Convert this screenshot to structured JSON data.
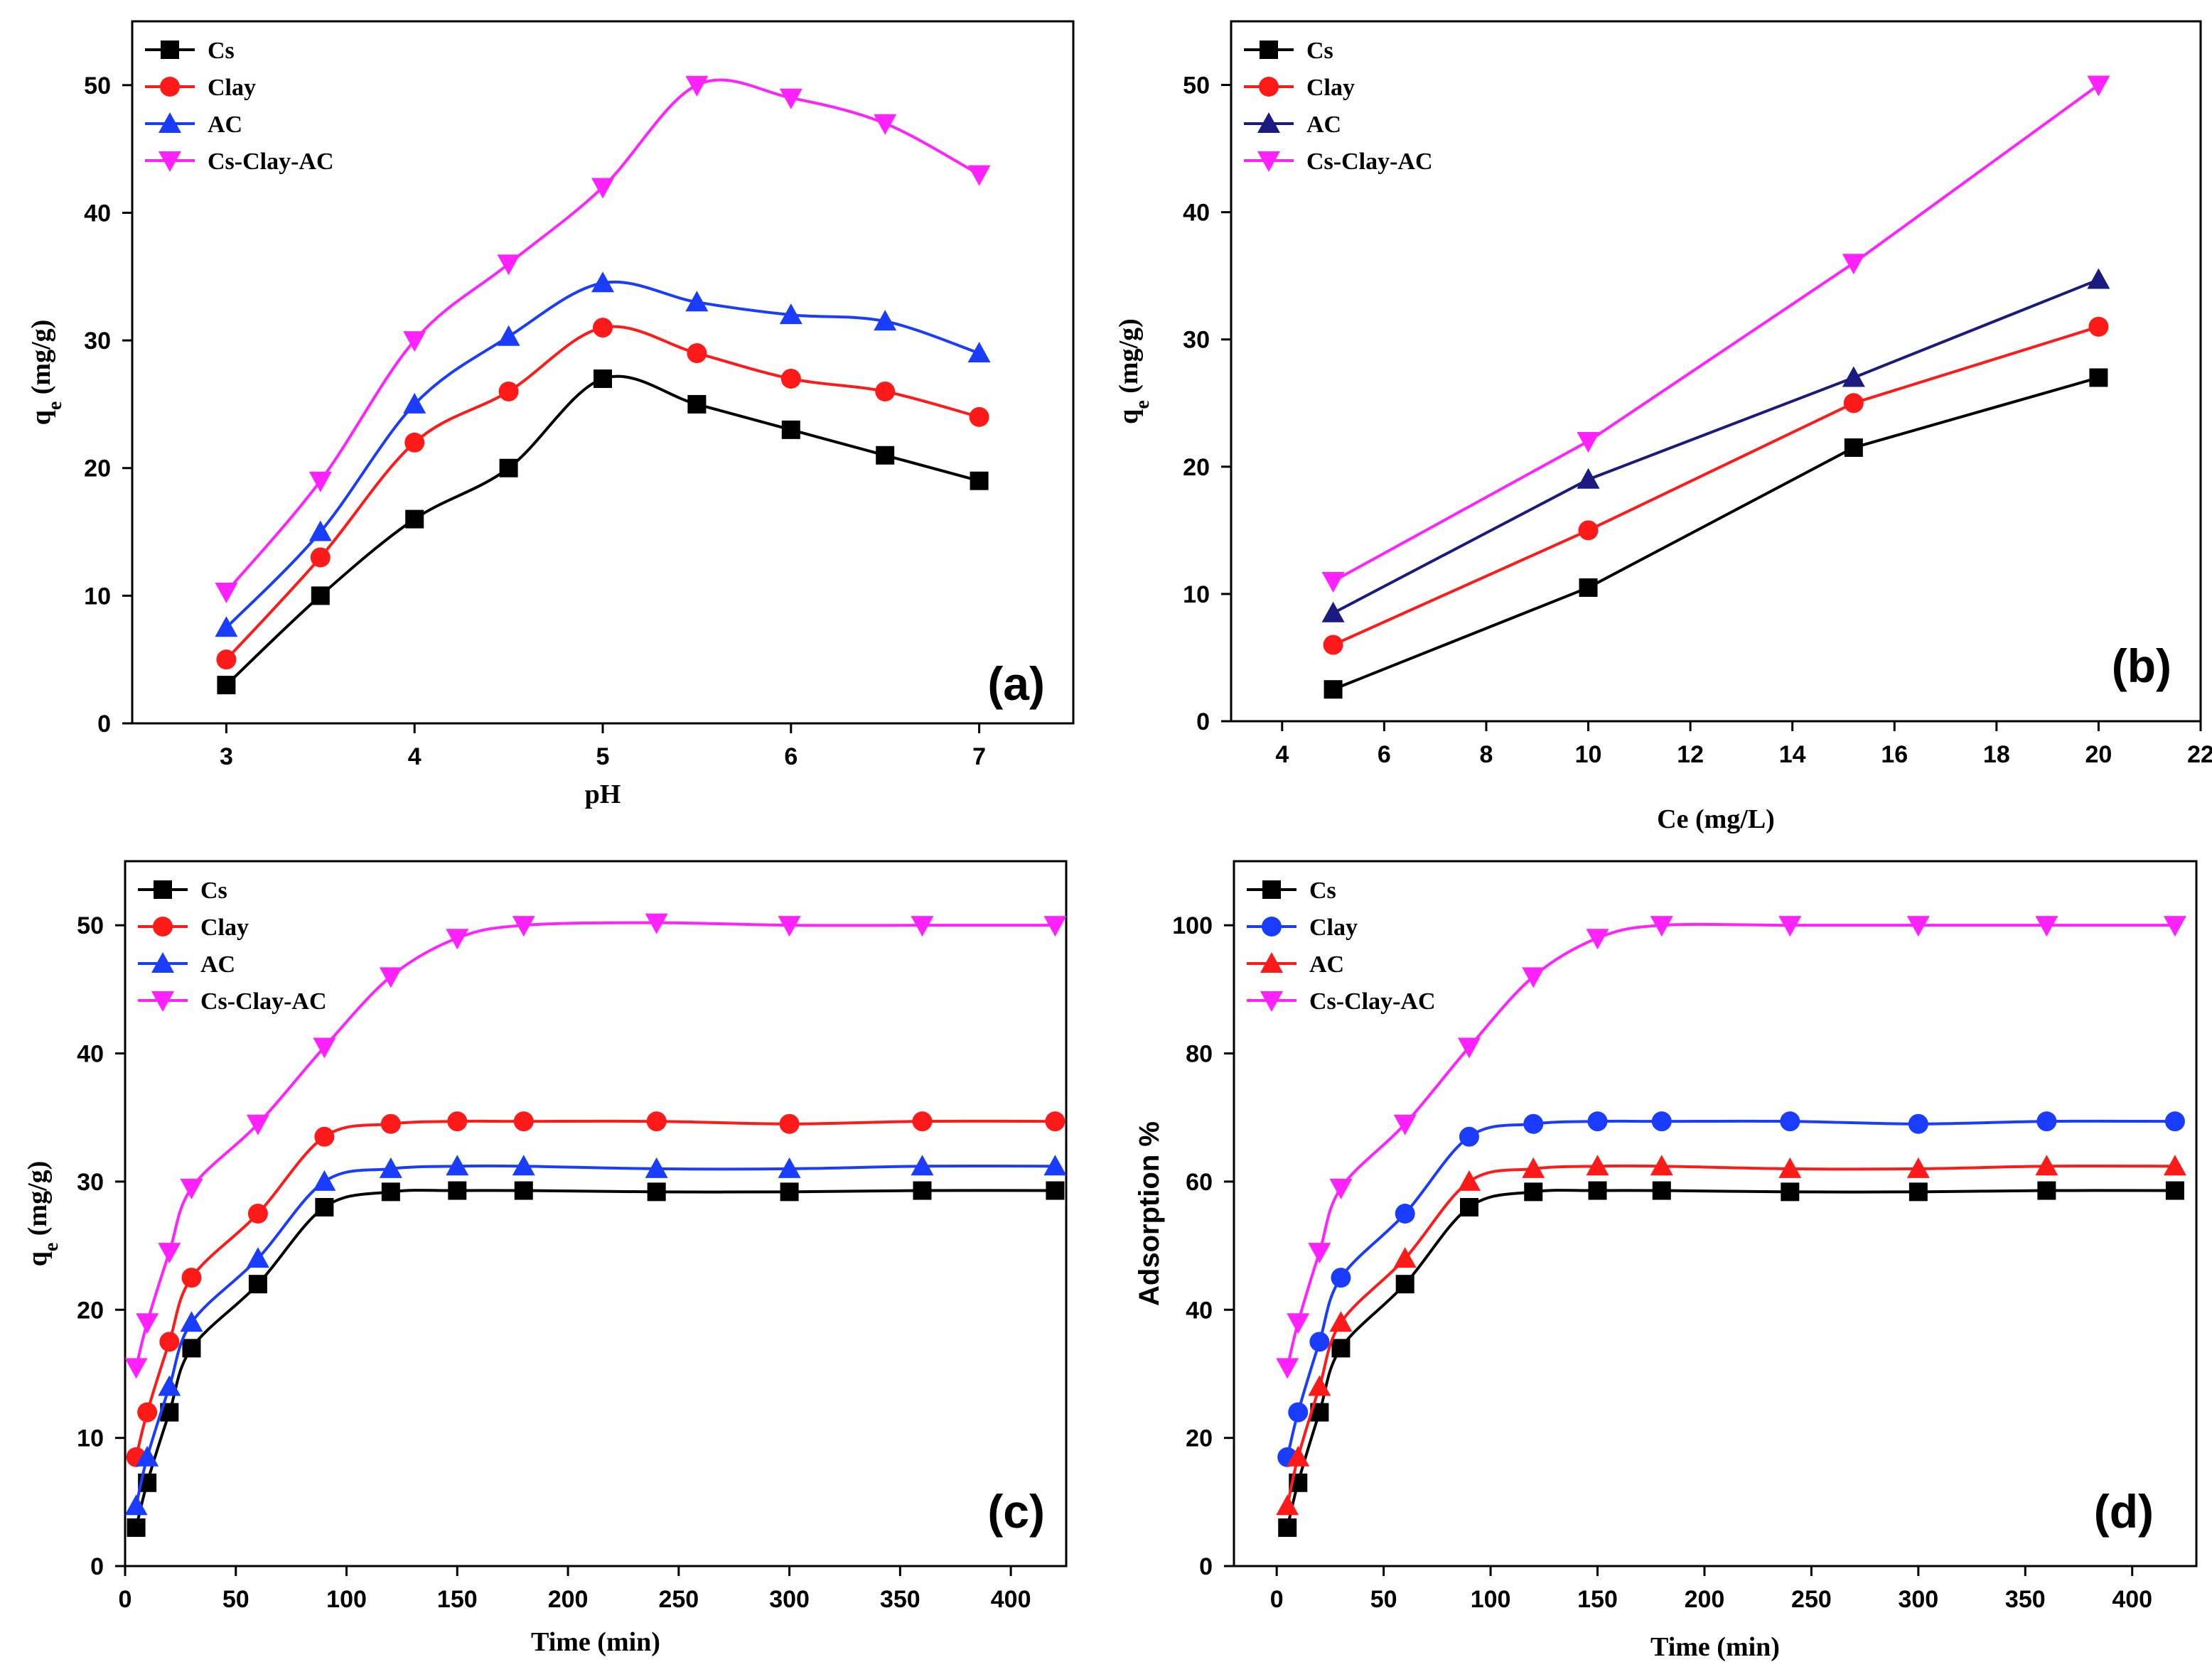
{
  "figure_title": "",
  "colors": {
    "black": "#000000",
    "red": "#ff1a1a",
    "blue": "#1a3cff",
    "navy": "#1a1a80",
    "magenta": "#ff22ff"
  },
  "chart_data": [
    {
      "type": "line",
      "panel_label": "(a)",
      "xlabel": "pH",
      "ylabel": "qe (mg/g)",
      "ylabel_main": "q",
      "ylabel_sub": "e",
      "ylabel_rest": " (mg/g)",
      "xlim": [
        2.5,
        7.5
      ],
      "ylim": [
        0,
        55
      ],
      "xticks": [
        3,
        4,
        5,
        6,
        7
      ],
      "xticklabels": [
        "3",
        "4",
        "5",
        "6",
        "7"
      ],
      "yticks": [
        0,
        10,
        20,
        30,
        40,
        50
      ],
      "yticklabels": [
        "0",
        "10",
        "20",
        "30",
        "40",
        "50"
      ],
      "legend_position": "top-left",
      "series": [
        {
          "name": "Cs",
          "color": "#000000",
          "marker": "square",
          "x": [
            3,
            3.5,
            4,
            4.5,
            5,
            5.5,
            6,
            6.5,
            7
          ],
          "values": [
            3,
            10,
            16,
            20,
            27,
            25,
            23,
            21,
            19
          ]
        },
        {
          "name": "Clay",
          "color": "#ff1a1a",
          "marker": "circle",
          "x": [
            3,
            3.5,
            4,
            4.5,
            5,
            5.5,
            6,
            6.5,
            7
          ],
          "values": [
            5,
            13,
            22,
            26,
            31,
            29,
            27,
            26,
            24
          ]
        },
        {
          "name": "AC",
          "color": "#1a3cff",
          "marker": "triangle-up",
          "x": [
            3,
            3.5,
            4,
            4.5,
            5,
            5.5,
            6,
            6.5,
            7
          ],
          "values": [
            7.5,
            15,
            25,
            30.3,
            34.5,
            33,
            32,
            31.5,
            29
          ]
        },
        {
          "name": "Cs-Clay-AC",
          "color": "#ff22ff",
          "marker": "triangle-down",
          "x": [
            3,
            3.5,
            4,
            4.5,
            5,
            5.5,
            6,
            6.5,
            7
          ],
          "values": [
            10.3,
            19,
            30,
            36,
            42,
            50,
            49,
            47,
            43
          ]
        }
      ]
    },
    {
      "type": "line",
      "panel_label": "(b)",
      "xlabel": "Ce (mg/L)",
      "ylabel": "qe (mg/g)",
      "ylabel_main": "q",
      "ylabel_sub": "e",
      "ylabel_rest": " (mg/g)",
      "xlim": [
        3,
        22
      ],
      "ylim": [
        0,
        55
      ],
      "xticks": [
        4,
        6,
        8,
        10,
        12,
        14,
        16,
        18,
        20,
        22
      ],
      "xticklabels": [
        "4",
        "6",
        "8",
        "10",
        "12",
        "14",
        "16",
        "18",
        "20",
        "22"
      ],
      "yticks": [
        0,
        10,
        20,
        30,
        40,
        50
      ],
      "yticklabels": [
        "0",
        "10",
        "20",
        "30",
        "40",
        "50"
      ],
      "legend_position": "top-left",
      "series": [
        {
          "name": "Cs",
          "color": "#000000",
          "marker": "square",
          "x": [
            5,
            10,
            15.2,
            20
          ],
          "values": [
            2.5,
            10.5,
            21.5,
            27
          ]
        },
        {
          "name": "Clay",
          "color": "#ff1a1a",
          "marker": "circle",
          "x": [
            5,
            10,
            15.2,
            20
          ],
          "values": [
            6,
            15,
            25,
            31
          ]
        },
        {
          "name": "AC",
          "color": "#1a1a80",
          "marker": "triangle-up",
          "x": [
            5,
            10,
            15.2,
            20
          ],
          "values": [
            8.5,
            19,
            27,
            34.7
          ]
        },
        {
          "name": "Cs-Clay-AC",
          "color": "#ff22ff",
          "marker": "triangle-down",
          "x": [
            5,
            10,
            15.2,
            20
          ],
          "values": [
            11,
            22,
            36,
            50
          ]
        }
      ]
    },
    {
      "type": "line",
      "panel_label": "(c)",
      "xlabel": "Time (min)",
      "ylabel": "qe (mg/g)",
      "ylabel_main": "q",
      "ylabel_sub": "e",
      "ylabel_rest": " (mg/g)",
      "xlim": [
        0,
        425
      ],
      "ylim": [
        0,
        55
      ],
      "xticks": [
        0,
        50,
        100,
        150,
        200,
        250,
        300,
        350,
        400
      ],
      "xticklabels": [
        "0",
        "50",
        "100",
        "150",
        "200",
        "250",
        "300",
        "350",
        "400"
      ],
      "yticks": [
        0,
        10,
        20,
        30,
        40,
        50
      ],
      "yticklabels": [
        "0",
        "10",
        "20",
        "30",
        "40",
        "50"
      ],
      "legend_position": "top-left",
      "series": [
        {
          "name": "Cs",
          "color": "#000000",
          "marker": "square",
          "x": [
            5,
            10,
            20,
            30,
            60,
            90,
            120,
            150,
            180,
            240,
            300,
            360,
            420
          ],
          "values": [
            3,
            6.5,
            12,
            17,
            22,
            28,
            29.2,
            29.3,
            29.3,
            29.2,
            29.2,
            29.3,
            29.3
          ]
        },
        {
          "name": "Clay",
          "color": "#ff1a1a",
          "marker": "circle",
          "x": [
            5,
            10,
            20,
            30,
            60,
            90,
            120,
            150,
            180,
            240,
            300,
            360,
            420
          ],
          "values": [
            8.5,
            12,
            17.5,
            22.5,
            27.5,
            33.5,
            34.5,
            34.7,
            34.7,
            34.7,
            34.5,
            34.7,
            34.7
          ]
        },
        {
          "name": "AC",
          "color": "#1a3cff",
          "marker": "triangle-up",
          "x": [
            5,
            10,
            20,
            30,
            60,
            90,
            120,
            150,
            180,
            240,
            300,
            360,
            420
          ],
          "values": [
            4.7,
            8.5,
            14,
            19,
            24,
            30,
            31,
            31.2,
            31.2,
            31,
            31,
            31.2,
            31.2
          ]
        },
        {
          "name": "Cs-Clay-AC",
          "color": "#ff22ff",
          "marker": "triangle-down",
          "x": [
            5,
            10,
            20,
            30,
            60,
            90,
            120,
            150,
            180,
            240,
            300,
            360,
            420
          ],
          "values": [
            15.5,
            19,
            24.5,
            29.5,
            34.5,
            40.5,
            46,
            49,
            50,
            50.2,
            50,
            50,
            50
          ]
        }
      ]
    },
    {
      "type": "line",
      "panel_label": "(d)",
      "xlabel": "Time (min)",
      "ylabel": "Adsorption %",
      "xlim": [
        -20,
        430
      ],
      "ylim": [
        0,
        110
      ],
      "xticks": [
        0,
        50,
        100,
        150,
        200,
        250,
        300,
        350,
        400
      ],
      "xticklabels": [
        "0",
        "50",
        "100",
        "150",
        "200",
        "250",
        "300",
        "350",
        "400"
      ],
      "yticks": [
        0,
        20,
        40,
        60,
        80,
        100
      ],
      "yticklabels": [
        "0",
        "20",
        "40",
        "60",
        "80",
        "100"
      ],
      "legend_position": "top-left",
      "series": [
        {
          "name": "Cs",
          "color": "#000000",
          "marker": "square",
          "x": [
            5,
            10,
            20,
            30,
            60,
            90,
            120,
            150,
            180,
            240,
            300,
            360,
            420
          ],
          "values": [
            6,
            13,
            24,
            34,
            44,
            56,
            58.4,
            58.6,
            58.6,
            58.4,
            58.4,
            58.6,
            58.6
          ]
        },
        {
          "name": "Clay",
          "color": "#1a3cff",
          "marker": "circle",
          "x": [
            5,
            10,
            20,
            30,
            60,
            90,
            120,
            150,
            180,
            240,
            300,
            360,
            420
          ],
          "values": [
            17,
            24,
            35,
            45,
            55,
            67,
            69,
            69.4,
            69.4,
            69.4,
            69,
            69.4,
            69.4
          ]
        },
        {
          "name": "AC",
          "color": "#ff1a1a",
          "marker": "triangle-up",
          "x": [
            5,
            10,
            20,
            30,
            60,
            90,
            120,
            150,
            180,
            240,
            300,
            360,
            420
          ],
          "values": [
            9.4,
            17,
            28,
            38,
            48,
            60,
            62,
            62.4,
            62.4,
            62,
            62,
            62.4,
            62.4
          ]
        },
        {
          "name": "Cs-Clay-AC",
          "color": "#ff22ff",
          "marker": "triangle-down",
          "x": [
            5,
            10,
            20,
            30,
            60,
            90,
            120,
            150,
            180,
            240,
            300,
            360,
            420
          ],
          "values": [
            31,
            38,
            49,
            59,
            69,
            81,
            92,
            98,
            100,
            100,
            100,
            100,
            100
          ]
        }
      ]
    }
  ]
}
